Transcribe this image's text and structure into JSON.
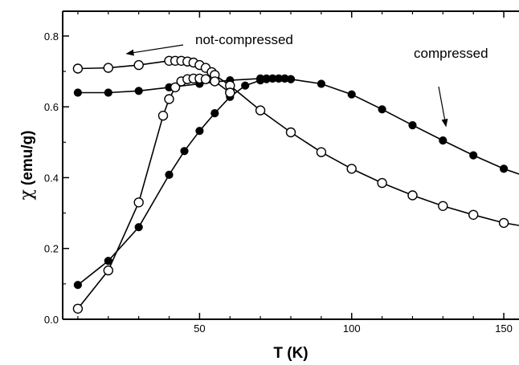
{
  "chart_data": {
    "type": "scatter",
    "title": "",
    "xlabel": "T (K)",
    "ylabel_symbol": "χ",
    "ylabel": "(emu/g)",
    "xlim": [
      5,
      155
    ],
    "ylim": [
      0.0,
      0.87
    ],
    "xticks": [
      50,
      100,
      150
    ],
    "xticks_minor": [
      10,
      20,
      30,
      40,
      60,
      70,
      80,
      90,
      110,
      120,
      130,
      140
    ],
    "yticks": [
      "0.0",
      "0.2",
      "0.4",
      "0.6",
      "0.8"
    ],
    "yticks_minor": [
      0.1,
      0.3,
      0.5,
      0.7
    ],
    "grid": false,
    "series": [
      {
        "name": "compressed",
        "marker": "filled-circle",
        "color": "#000000",
        "branches": [
          {
            "x": [
              10,
              20,
              30,
              40,
              50,
              60,
              70,
              72,
              74,
              76,
              78,
              80,
              90,
              100,
              110,
              120,
              130,
              140,
              150,
              155
            ],
            "y": [
              0.64,
              0.64,
              0.645,
              0.655,
              0.665,
              0.675,
              0.68,
              0.68,
              0.68,
              0.68,
              0.68,
              0.678,
              0.665,
              0.635,
              0.593,
              0.548,
              0.505,
              0.463,
              0.425,
              0.41
            ]
          },
          {
            "x": [
              10,
              20,
              30,
              40,
              45,
              50,
              55,
              60,
              65,
              70,
              72,
              74,
              76,
              78,
              80
            ],
            "y": [
              0.097,
              0.165,
              0.26,
              0.408,
              0.475,
              0.532,
              0.582,
              0.628,
              0.66,
              0.675,
              0.678,
              0.68,
              0.68,
              0.68,
              0.678
            ]
          }
        ]
      },
      {
        "name": "not-compressed",
        "marker": "open-circle",
        "color": "#000000",
        "branches": [
          {
            "x": [
              10,
              20,
              30,
              40,
              42,
              44,
              46,
              48,
              50,
              52,
              54,
              55,
              60,
              70,
              80,
              90,
              100,
              110,
              120,
              130,
              140,
              150,
              155
            ],
            "y": [
              0.708,
              0.71,
              0.718,
              0.73,
              0.73,
              0.73,
              0.728,
              0.725,
              0.718,
              0.71,
              0.698,
              0.69,
              0.66,
              0.59,
              0.528,
              0.472,
              0.425,
              0.385,
              0.35,
              0.32,
              0.295,
              0.272,
              0.265
            ]
          },
          {
            "x": [
              10,
              20,
              30,
              38,
              40,
              42,
              44,
              46,
              48,
              50,
              52,
              55,
              60
            ],
            "y": [
              0.03,
              0.138,
              0.33,
              0.575,
              0.622,
              0.655,
              0.672,
              0.678,
              0.68,
              0.68,
              0.678,
              0.672,
              0.64
            ]
          }
        ]
      }
    ],
    "annotations": [
      {
        "text": "not-compressed",
        "arrow_to": [
          26,
          0.75
        ]
      },
      {
        "text": "compressed",
        "arrow_to": [
          131,
          0.545
        ]
      }
    ]
  }
}
